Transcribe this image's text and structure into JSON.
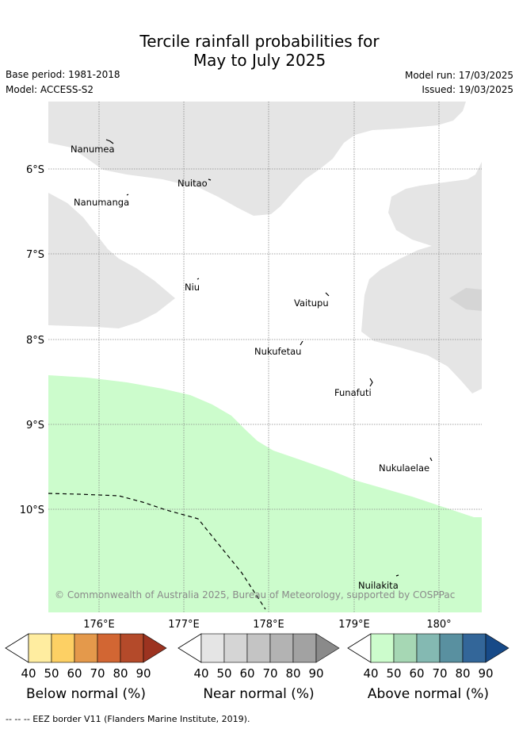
{
  "title": {
    "line1": "Tercile rainfall probabilities for",
    "line2": "May to July 2025"
  },
  "meta": {
    "base_period": "Base period: 1981-2018",
    "model": "Model: ACCESS-S2",
    "model_run": "Model run: 17/03/2025",
    "issued": "Issued: 19/03/2025"
  },
  "map": {
    "lat_labels": [
      "6°S",
      "7°S",
      "8°S",
      "9°S",
      "10°S"
    ],
    "lon_labels": [
      "176°E",
      "177°E",
      "178°E",
      "179°E",
      "180°"
    ],
    "places": [
      "Nanumea",
      "Nuitao",
      "Nanumanga",
      "Niu",
      "Vaitupu",
      "Nukufetau",
      "Funafuti",
      "Nukulaelae",
      "Nuilakita"
    ],
    "copyright": "© Commonwealth of Australia 2025, Bureau of Meteorology, supported by COSPPac",
    "colors": {
      "near_normal_40_50": "#e5e5e5",
      "above_normal_40_50": "#ccfccc",
      "grid": "#777777"
    }
  },
  "legends": [
    {
      "label": "Below normal (%)",
      "ticks": [
        "40",
        "50",
        "60",
        "70",
        "80",
        "90"
      ],
      "colors": [
        "#ffeda0",
        "#fdd064",
        "#e4994b",
        "#d26633",
        "#b44a2a",
        "#9c3320"
      ]
    },
    {
      "label": "Near normal (%)",
      "ticks": [
        "40",
        "50",
        "60",
        "70",
        "80",
        "90"
      ],
      "colors": [
        "#e5e5e5",
        "#d5d5d5",
        "#c4c4c4",
        "#b3b3b3",
        "#a2a2a2",
        "#8a8a8a"
      ]
    },
    {
      "label": "Above normal (%)",
      "ticks": [
        "40",
        "50",
        "60",
        "70",
        "80",
        "90"
      ],
      "colors": [
        "#ccfccc",
        "#a6d7b4",
        "#84b9b2",
        "#5990a0",
        "#336699",
        "#174a88"
      ]
    }
  ],
  "footnote": "-- -- -- EEZ border V11 (Flanders Marine Institute, 2019)."
}
